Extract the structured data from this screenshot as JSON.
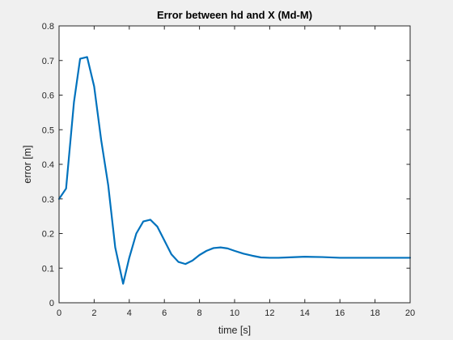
{
  "chart_data": {
    "type": "line",
    "title": "Error between hd and X (Md-M)",
    "xlabel": "time [s]",
    "ylabel": "error [m]",
    "xlim": [
      0,
      20
    ],
    "ylim": [
      0,
      0.8
    ],
    "xticks": [
      0,
      2,
      4,
      6,
      8,
      10,
      12,
      14,
      16,
      18,
      20
    ],
    "yticks": [
      0,
      0.1,
      0.2,
      0.3,
      0.4,
      0.5,
      0.6,
      0.7,
      0.8
    ],
    "xtick_labels": [
      "0",
      "2",
      "4",
      "6",
      "8",
      "10",
      "12",
      "14",
      "16",
      "18",
      "20"
    ],
    "ytick_labels": [
      "0",
      "0.1",
      "0.2",
      "0.3",
      "0.4",
      "0.5",
      "0.6",
      "0.7",
      "0.8"
    ],
    "grid": false,
    "box": true,
    "series": [
      {
        "color": "#0072bd",
        "x": [
          0,
          0.4,
          0.85,
          1.2,
          1.6,
          2.0,
          2.4,
          2.8,
          3.2,
          3.65,
          4.0,
          4.4,
          4.8,
          5.2,
          5.6,
          6.0,
          6.4,
          6.8,
          7.2,
          7.6,
          8.0,
          8.4,
          8.8,
          9.2,
          9.6,
          10.0,
          10.5,
          11.0,
          11.5,
          12.0,
          12.5,
          13.0,
          14.0,
          15.0,
          16.0,
          17.0,
          18.0,
          19.0,
          20.0
        ],
        "y": [
          0.3,
          0.33,
          0.58,
          0.705,
          0.71,
          0.625,
          0.47,
          0.34,
          0.16,
          0.055,
          0.13,
          0.2,
          0.235,
          0.24,
          0.22,
          0.18,
          0.14,
          0.118,
          0.112,
          0.122,
          0.138,
          0.15,
          0.158,
          0.16,
          0.157,
          0.15,
          0.142,
          0.136,
          0.131,
          0.13,
          0.13,
          0.131,
          0.133,
          0.132,
          0.13,
          0.13,
          0.13,
          0.13,
          0.13
        ]
      }
    ],
    "colors": {
      "figure_background": "#f0f0f0",
      "axes_background": "#ffffff",
      "axes_color": "#262626",
      "line": "#0072bd"
    }
  }
}
